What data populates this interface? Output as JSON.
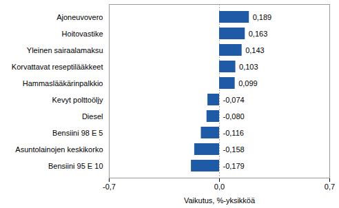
{
  "chart_data": {
    "type": "bar",
    "orientation": "horizontal",
    "categories": [
      "Ajoneuvovero",
      "Hoitovastike",
      "Yleinen sairaalamaksu",
      "Korvattavat reseptilääkkeet",
      "Hammaslääkärinpalkkio",
      "Kevyt polttoöljy",
      "Diesel",
      "Bensiini 98 E 5",
      "Asuntolainojen keskikorko",
      "Bensiini 95 E 10"
    ],
    "values": [
      0.189,
      0.163,
      0.143,
      0.103,
      0.099,
      -0.074,
      -0.08,
      -0.116,
      -0.158,
      -0.179
    ],
    "value_labels": [
      "0,189",
      "0,163",
      "0,143",
      "0,103",
      "0,099",
      "-0,074",
      "-0,080",
      "-0,116",
      "-0,158",
      "-0,179"
    ],
    "data_labels": true,
    "color": "#1f5aa6",
    "xlabel": "Vaikutus, %-yksikköä",
    "xlim": [
      -0.7,
      0.7
    ],
    "xticks": [
      {
        "value": -0.7,
        "label": "-0,7"
      },
      {
        "value": 0,
        "label": "0,0"
      },
      {
        "value": 0.7,
        "label": "0,7"
      }
    ],
    "grid": true
  }
}
